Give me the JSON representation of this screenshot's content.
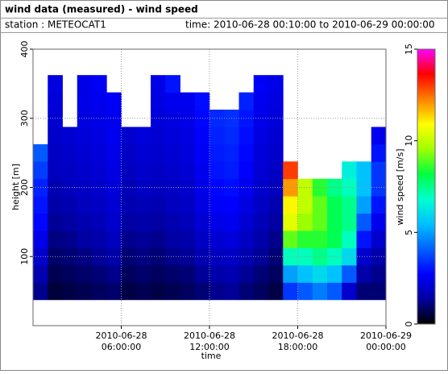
{
  "window": {
    "title": "wind data (measured) - wind speed",
    "station": "station : METEOCAT1",
    "time": "time: 2010-06-28 00:10:00 to 2010-06-29 00:00:00"
  },
  "chart_data": {
    "type": "heatmap",
    "x_label": "time",
    "y_label": "height [m]",
    "colorbar_label": "wind speed [m/s]",
    "x": [
      "2010-06-28 00:30:00",
      "2010-06-28 01:30:00",
      "2010-06-28 02:30:00",
      "2010-06-28 03:30:00",
      "2010-06-28 04:30:00",
      "2010-06-28 05:30:00",
      "2010-06-28 06:30:00",
      "2010-06-28 07:30:00",
      "2010-06-28 08:30:00",
      "2010-06-28 09:30:00",
      "2010-06-28 10:30:00",
      "2010-06-28 11:30:00",
      "2010-06-28 12:30:00",
      "2010-06-28 13:30:00",
      "2010-06-28 14:30:00",
      "2010-06-28 15:30:00",
      "2010-06-28 16:30:00",
      "2010-06-28 17:30:00",
      "2010-06-28 18:30:00",
      "2010-06-28 19:30:00",
      "2010-06-28 20:30:00",
      "2010-06-28 21:30:00",
      "2010-06-28 22:30:00",
      "2010-06-28 23:30:00"
    ],
    "y": [
      50,
      75,
      100,
      125,
      150,
      175,
      200,
      225,
      250,
      275,
      300,
      325,
      350,
      375
    ],
    "z": [
      [
        1.2,
        1.6,
        2.0,
        2.4,
        2.8,
        3.0,
        3.2,
        3.6,
        4.0,
        null,
        null,
        null,
        null,
        null
      ],
      [
        0.5,
        0.7,
        0.9,
        1.1,
        1.3,
        1.5,
        1.6,
        1.8,
        1.9,
        2.0,
        2.1,
        2.2,
        2.3,
        null
      ],
      [
        0.6,
        0.8,
        1.0,
        1.2,
        1.4,
        1.6,
        1.8,
        1.9,
        2.0,
        2.1,
        null,
        null,
        null,
        null
      ],
      [
        0.7,
        0.9,
        1.1,
        1.4,
        1.6,
        1.8,
        1.9,
        2.0,
        2.1,
        2.2,
        2.3,
        2.4,
        2.4,
        null
      ],
      [
        0.8,
        1.0,
        1.3,
        1.5,
        1.7,
        1.9,
        2.0,
        2.1,
        2.2,
        2.3,
        2.4,
        2.5,
        2.6,
        null
      ],
      [
        0.9,
        1.2,
        1.5,
        1.8,
        2.0,
        2.1,
        2.2,
        2.3,
        2.4,
        2.5,
        2.5,
        2.6,
        null,
        null
      ],
      [
        0.6,
        0.8,
        1.0,
        1.2,
        1.4,
        1.6,
        1.7,
        1.8,
        1.9,
        2.0,
        null,
        null,
        null,
        null
      ],
      [
        0.7,
        0.9,
        1.1,
        1.3,
        1.5,
        1.7,
        1.9,
        2.0,
        2.1,
        2.2,
        null,
        null,
        null,
        null
      ],
      [
        0.6,
        0.8,
        1.0,
        1.2,
        1.4,
        1.6,
        1.8,
        1.9,
        2.0,
        2.1,
        2.2,
        2.3,
        2.4,
        null
      ],
      [
        0.7,
        0.9,
        1.2,
        1.4,
        1.6,
        1.8,
        1.9,
        2.0,
        2.1,
        2.2,
        2.3,
        2.5,
        3.0,
        null
      ],
      [
        0.8,
        1.0,
        1.3,
        1.5,
        1.7,
        1.9,
        2.0,
        2.1,
        2.2,
        2.3,
        2.4,
        2.5,
        null,
        null
      ],
      [
        1.0,
        1.3,
        1.6,
        1.9,
        2.1,
        2.3,
        2.4,
        2.5,
        2.6,
        2.7,
        2.8,
        2.9,
        null,
        null
      ],
      [
        1.2,
        1.5,
        1.8,
        2.1,
        2.4,
        2.6,
        2.8,
        3.0,
        3.1,
        3.2,
        3.3,
        null,
        null,
        null
      ],
      [
        1.3,
        1.6,
        1.9,
        2.2,
        2.5,
        2.7,
        2.9,
        3.1,
        3.2,
        3.3,
        3.4,
        null,
        null,
        null
      ],
      [
        1.0,
        1.3,
        1.6,
        1.9,
        2.1,
        2.3,
        2.5,
        2.7,
        2.8,
        2.9,
        3.0,
        3.2,
        null,
        null
      ],
      [
        0.8,
        1.0,
        1.3,
        1.5,
        1.7,
        1.9,
        2.0,
        2.1,
        2.2,
        2.3,
        2.4,
        2.5,
        2.6,
        null
      ],
      [
        0.6,
        0.8,
        1.0,
        1.2,
        1.4,
        1.6,
        1.8,
        1.9,
        2.0,
        2.1,
        2.2,
        2.3,
        2.4,
        null
      ],
      [
        3.5,
        5,
        7,
        9,
        10.5,
        11,
        12,
        13,
        null,
        null,
        null,
        null,
        null,
        null
      ],
      [
        4,
        5.5,
        7,
        8.5,
        9.5,
        10,
        10,
        null,
        null,
        null,
        null,
        null,
        null,
        null
      ],
      [
        4.5,
        6,
        7.5,
        8.5,
        9,
        9,
        8.5,
        null,
        null,
        null,
        null,
        null,
        null,
        null
      ],
      [
        4,
        5.5,
        7,
        8,
        8,
        8,
        7.5,
        null,
        null,
        null,
        null,
        null,
        null,
        null
      ],
      [
        2,
        4,
        6,
        7,
        7.5,
        7.5,
        7,
        6.5,
        null,
        null,
        null,
        null,
        null,
        null
      ],
      [
        1,
        1.5,
        2,
        3,
        4,
        5,
        5.5,
        5.5,
        null,
        null,
        null,
        null,
        null,
        null
      ],
      [
        1,
        1.2,
        1.5,
        2,
        2.5,
        3,
        3.5,
        3.5,
        3,
        2.5,
        null,
        null,
        null,
        null
      ]
    ],
    "xlim": [
      "2010-06-28 00:00:00",
      "2010-06-29 00:00:00"
    ],
    "xticks": [
      "2010-06-28 06:00:00",
      "2010-06-28 12:00:00",
      "2010-06-28 18:00:00",
      "2010-06-29 00:00:00"
    ],
    "ylim": [
      0,
      400
    ],
    "yticks": [
      100,
      200,
      300,
      400
    ],
    "zlim": [
      0,
      15
    ],
    "zticks": [
      0,
      5,
      10,
      15
    ],
    "colormap": [
      "#000000",
      "#0000a0",
      "#0000ff",
      "#0060ff",
      "#00c0ff",
      "#00ffd0",
      "#00ff40",
      "#a0ff00",
      "#ffff00",
      "#ff8000",
      "#ff0000",
      "#ff00ff"
    ],
    "grid": true
  }
}
